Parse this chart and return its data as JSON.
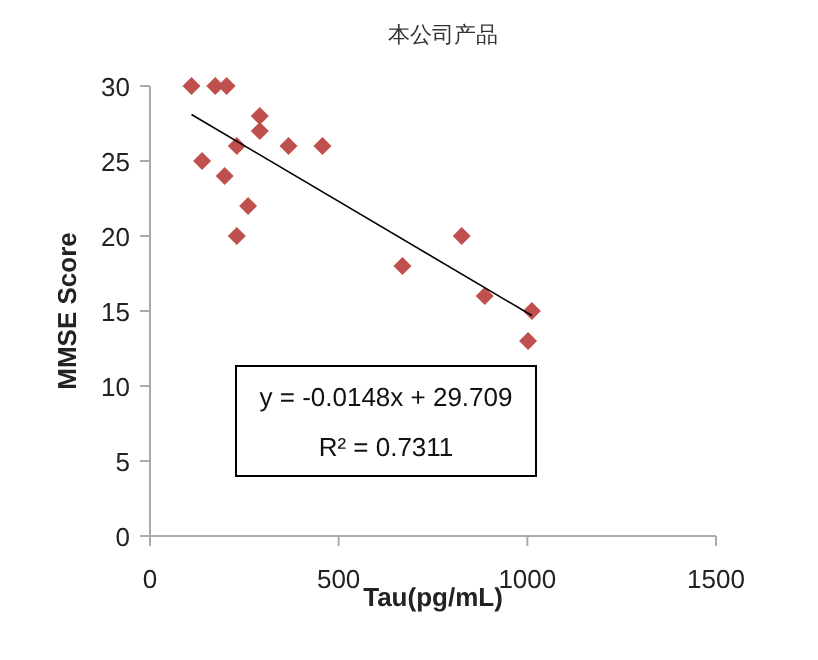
{
  "chart_data": {
    "type": "scatter",
    "title": "本公司产品",
    "xlabel": "Tau(pg/mL)",
    "ylabel": "MMSE Score",
    "xlim": [
      0,
      1500
    ],
    "ylim": [
      0,
      30
    ],
    "xticks": [
      0,
      500,
      1000,
      1500
    ],
    "yticks": [
      0,
      5,
      10,
      15,
      20,
      25,
      30
    ],
    "series": [
      {
        "color": "#c0504d",
        "marker": "diamond",
        "x": [
          110,
          173,
          203,
          138,
          198,
          230,
          230,
          260,
          291,
          291,
          367,
          457,
          669,
          826,
          887,
          1012,
          1002
        ],
        "values": [
          30,
          30,
          30,
          25,
          24,
          26,
          20,
          22,
          28,
          27,
          26,
          26,
          18,
          20,
          16,
          15,
          13
        ]
      },
      {
        "type": "line",
        "marker": "none",
        "color": "#000000",
        "x": [
          110,
          1012
        ],
        "values": [
          28.1,
          14.7
        ]
      }
    ],
    "annotations": [
      "y = -0.0148x + 29.709",
      "R² = 0.7311"
    ]
  }
}
